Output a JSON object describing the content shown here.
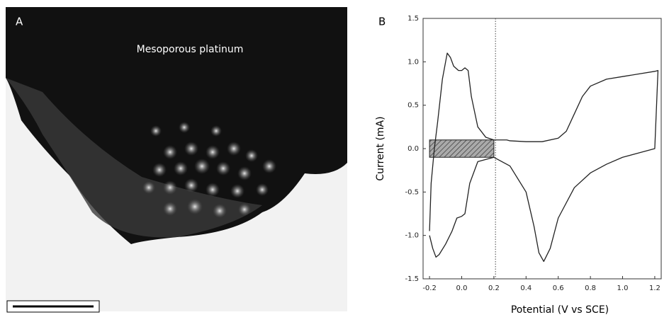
{
  "panel_a": {
    "label": "A",
    "caption": "Mesoporous platinum"
  },
  "chart_data": {
    "type": "line",
    "panel_label": "B",
    "x_label": "Potential (V vs SCE)",
    "y_label": "Current (mA)",
    "xlim": [
      -0.24,
      1.24
    ],
    "ylim": [
      -1.5,
      1.5
    ],
    "xticks": [
      -0.2,
      {
        "value": 0,
        "label": "0.0"
      },
      0.2,
      0.4,
      0.6,
      0.8,
      {
        "value": 1,
        "label": "1.0"
      },
      1.2
    ],
    "yticks": [
      -1.5,
      {
        "value": -1,
        "label": "-1.0"
      },
      -0.5,
      {
        "value": 0,
        "label": "0.0"
      },
      0.5,
      {
        "value": 1,
        "label": "1.0"
      },
      1.5
    ],
    "series": [
      {
        "color": "#222222",
        "x": [
          -0.2,
          -0.19,
          -0.17,
          -0.15,
          -0.12,
          -0.09,
          -0.07,
          -0.05,
          -0.02,
          0.0,
          0.02,
          0.04,
          0.06,
          0.1,
          0.15,
          0.2,
          0.25,
          0.28,
          0.3,
          0.4,
          0.5,
          0.6,
          0.65,
          0.7,
          0.75,
          0.8,
          0.9,
          1.0,
          1.1,
          1.2,
          1.22,
          1.2,
          1.1,
          1.0,
          0.9,
          0.8,
          0.7,
          0.6,
          0.55,
          0.51,
          0.48,
          0.45,
          0.4,
          0.3,
          0.2,
          0.1,
          0.05,
          0.02,
          0.0,
          -0.03,
          -0.06,
          -0.1,
          -0.14,
          -0.16,
          -0.18,
          -0.2
        ],
        "values": [
          -0.95,
          -0.4,
          0.0,
          0.3,
          0.8,
          1.1,
          1.05,
          0.95,
          0.9,
          0.9,
          0.93,
          0.9,
          0.6,
          0.25,
          0.13,
          0.1,
          0.1,
          0.1,
          0.09,
          0.08,
          0.08,
          0.12,
          0.2,
          0.4,
          0.6,
          0.72,
          0.8,
          0.83,
          0.86,
          0.89,
          0.9,
          0.0,
          -0.05,
          -0.1,
          -0.18,
          -0.28,
          -0.45,
          -0.8,
          -1.15,
          -1.3,
          -1.2,
          -0.9,
          -0.5,
          -0.2,
          -0.1,
          -0.15,
          -0.4,
          -0.75,
          -0.78,
          -0.8,
          -0.95,
          -1.1,
          -1.22,
          -1.25,
          -1.15,
          -1.0
        ]
      }
    ],
    "shaded_region": {
      "x": [
        -0.2,
        0.2
      ],
      "y": [
        -0.1,
        0.1
      ]
    },
    "vline": 0.21
  }
}
